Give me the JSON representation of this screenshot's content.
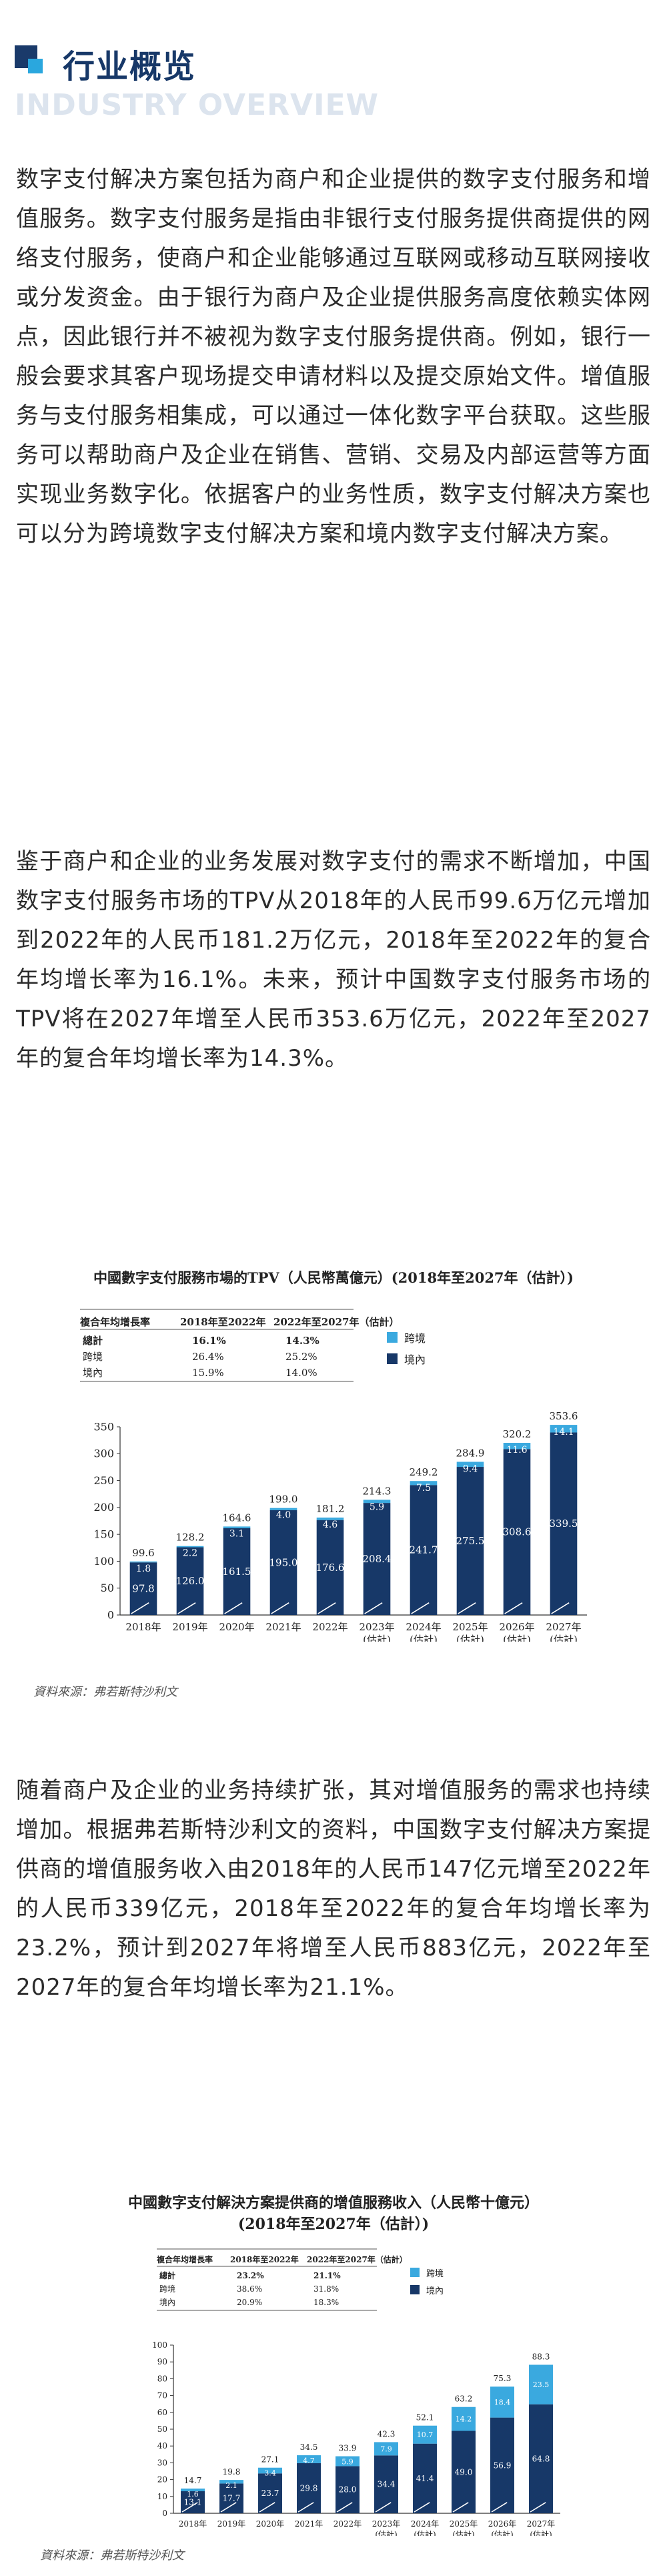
{
  "header": {
    "title": "行业概览",
    "subtitle": "INDUSTRY OVERVIEW"
  },
  "paragraphs": {
    "p1": "数字支付解决方案包括为商户和企业提供的数字支付服务和增值服务。数字支付服务是指由非银行支付服务提供商提供的网络支付服务，使商户和企业能够通过互联网或移动互联网接收或分发资金。由于银行为商户及企业提供服务高度依赖实体网点，因此银行并不被视为数字支付服务提供商。例如，银行一般会要求其客户现场提交申请材料以及提交原始文件。增值服务与支付服务相集成，可以通过一体化数字平台获取。这些服务可以帮助商户及企业在销售、营销、交易及内部运营等方面实现业务数字化。依据客户的业务性质，数字支付解决方案也可以分为跨境数字支付解决方案和境内数字支付解决方案。",
    "p2": "鉴于商户和企业的业务发展对数字支付的需求不断增加，中国数字支付服务市场的TPV从2018年的人民币99.6万亿元增加到2022年的人民币181.2万亿元，2018年至2022年的复合年均增长率为16.1%。未来，预计中国数字支付服务市场的TPV将在2027年增至人民币353.6万亿元，2022年至2027年的复合年均增长率为14.3%。",
    "p3": "随着商户及企业的业务持续扩张，其对增值服务的需求也持续增加。根据弗若斯特沙利文的资料，中国数字支付解决方案提供商的增值服务收入由2018年的人民币147亿元增至2022年的人民币339亿元，2018年至2022年的复合年均增长率为23.2%，预计到2027年将增至人民币883亿元，2022年至2027年的复合年均增长率为21.1%。"
  },
  "chart_data": [
    {
      "type": "bar",
      "title": "中國數字支付服務市場的TPV（人民幣萬億元）(2018年至2027年（估計）)",
      "categories": [
        "2018年",
        "2019年",
        "2020年",
        "2021年",
        "2022年",
        "2023年(估計)",
        "2024年(估計)",
        "2025年(估計)",
        "2026年(估計)",
        "2027年(估計)"
      ],
      "series": [
        {
          "name": "境內",
          "values": [
            97.8,
            126.0,
            161.5,
            195.0,
            176.6,
            208.4,
            241.7,
            275.5,
            308.6,
            339.5
          ]
        },
        {
          "name": "跨境",
          "values": [
            1.8,
            2.2,
            3.1,
            4.0,
            4.6,
            5.9,
            7.5,
            9.4,
            11.6,
            14.1
          ]
        }
      ],
      "totals": [
        99.6,
        128.2,
        164.6,
        199.0,
        181.2,
        214.3,
        249.2,
        284.9,
        320.2,
        353.6
      ],
      "ylim": [
        0,
        350
      ],
      "yticks": [
        0,
        50,
        100,
        150,
        200,
        250,
        300,
        350
      ],
      "legend_position": "top-right",
      "colors": {
        "domestic": "#173868",
        "cross": "#3aa9df"
      },
      "cagr_table": {
        "headers": [
          "複合年均增長率",
          "2018年至2022年",
          "2022年至2027年（估計）"
        ],
        "rows": [
          [
            "總計",
            "16.1%",
            "14.3%"
          ],
          [
            "跨境",
            "26.4%",
            "25.2%"
          ],
          [
            "境內",
            "15.9%",
            "14.0%"
          ]
        ]
      },
      "source": "資料來源：弗若斯特沙利文"
    },
    {
      "type": "bar",
      "title": "中國數字支付解決方案提供商的增值服務收入（人民幣十億元）",
      "subtitle": "(2018年至2027年（估計）)",
      "categories": [
        "2018年",
        "2019年",
        "2020年",
        "2021年",
        "2022年",
        "2023年(估計)",
        "2024年(估計)",
        "2025年(估計)",
        "2026年(估計)",
        "2027年(估計)"
      ],
      "series": [
        {
          "name": "境內",
          "values": [
            13.1,
            17.7,
            23.7,
            29.8,
            28.0,
            34.4,
            41.4,
            49.0,
            56.9,
            64.8
          ]
        },
        {
          "name": "跨境",
          "values": [
            1.6,
            2.1,
            3.4,
            4.7,
            5.9,
            7.9,
            10.7,
            14.2,
            18.4,
            23.5
          ]
        }
      ],
      "totals": [
        14.7,
        19.8,
        27.1,
        34.5,
        33.9,
        42.3,
        52.1,
        63.2,
        75.3,
        88.3
      ],
      "ylim": [
        0,
        100
      ],
      "yticks": [
        0,
        10,
        20,
        30,
        40,
        50,
        60,
        70,
        80,
        90,
        100
      ],
      "legend_position": "top-right",
      "colors": {
        "domestic": "#173868",
        "cross": "#3aa9df"
      },
      "cagr_table": {
        "headers": [
          "複合年均增長率",
          "2018年至2022年",
          "2022年至2027年（估計）"
        ],
        "rows": [
          [
            "總計",
            "23.2%",
            "21.1%"
          ],
          [
            "跨境",
            "38.6%",
            "31.8%"
          ],
          [
            "境內",
            "20.9%",
            "18.3%"
          ]
        ]
      },
      "source": "資料來源：弗若斯特沙利文"
    }
  ]
}
